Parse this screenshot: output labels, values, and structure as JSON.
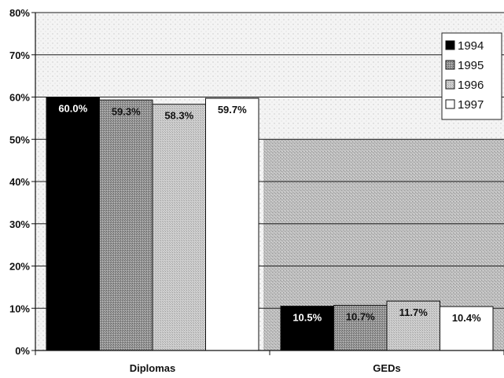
{
  "chart_data": {
    "type": "bar",
    "categories": [
      "Diplomas",
      "GEDs"
    ],
    "series": [
      {
        "name": "1994",
        "values": [
          60.0,
          10.5
        ],
        "labels": [
          "60.0%",
          "10.5%"
        ],
        "color": "#000000"
      },
      {
        "name": "1995",
        "values": [
          59.3,
          10.7
        ],
        "labels": [
          "59.3%",
          "10.7%"
        ],
        "color": "#8a8a8a"
      },
      {
        "name": "1996",
        "values": [
          58.3,
          11.7
        ],
        "labels": [
          "58.3%",
          "11.7%"
        ],
        "color": "#c8c8c8"
      },
      {
        "name": "1997",
        "values": [
          59.7,
          10.4
        ],
        "labels": [
          "59.7%",
          "10.4%"
        ],
        "color": "#ffffff"
      }
    ],
    "yticks": [
      "0%",
      "10%",
      "20%",
      "30%",
      "40%",
      "50%",
      "60%",
      "70%",
      "80%"
    ],
    "ylim": [
      0,
      80
    ],
    "grid": true,
    "legend": "top-right",
    "title": "",
    "xlabel": "",
    "ylabel": ""
  }
}
